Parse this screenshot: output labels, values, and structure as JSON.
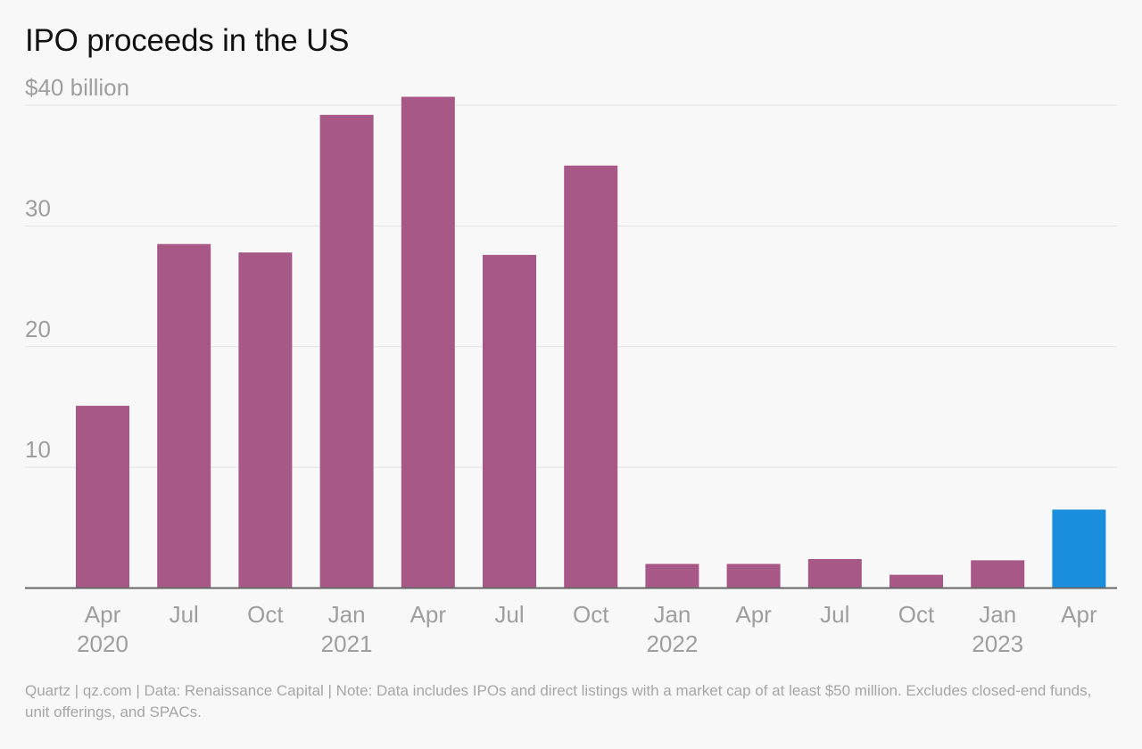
{
  "title": "IPO proceeds in the US",
  "footer": {
    "note": "Quartz | qz.com | Data: Renaissance Capital | Note: Data includes IPOs and direct listings with a market cap of at least $50 million. Excludes closed-end funds, unit offerings, and SPACs."
  },
  "colors": {
    "bar": "#a85886",
    "highlight": "#1a8edc",
    "gridline": "#e3e3e3",
    "axis": "#666666",
    "tick_label": "#9e9e9e"
  },
  "chart_data": {
    "type": "bar",
    "title": "IPO proceeds in the US",
    "ylabel": "",
    "y_tick_labels": [
      {
        "value": 10,
        "label": "10"
      },
      {
        "value": 20,
        "label": "20"
      },
      {
        "value": 30,
        "label": "30"
      },
      {
        "value": 40,
        "label": "$40 billion"
      }
    ],
    "ylim": [
      0,
      40
    ],
    "grid": true,
    "categories": [
      "Apr",
      "Jul",
      "Oct",
      "Jan",
      "Apr",
      "Jul",
      "Oct",
      "Jan",
      "Apr",
      "Jul",
      "Oct",
      "Jan",
      "Apr"
    ],
    "category_years": [
      "2020",
      "",
      "",
      "2021",
      "",
      "",
      "",
      "2022",
      "",
      "",
      "",
      "2023",
      ""
    ],
    "values": [
      15.1,
      28.5,
      27.8,
      39.2,
      40.7,
      27.6,
      35.0,
      2.0,
      2.0,
      2.4,
      1.1,
      2.3,
      6.5
    ],
    "highlight_index": 12
  }
}
